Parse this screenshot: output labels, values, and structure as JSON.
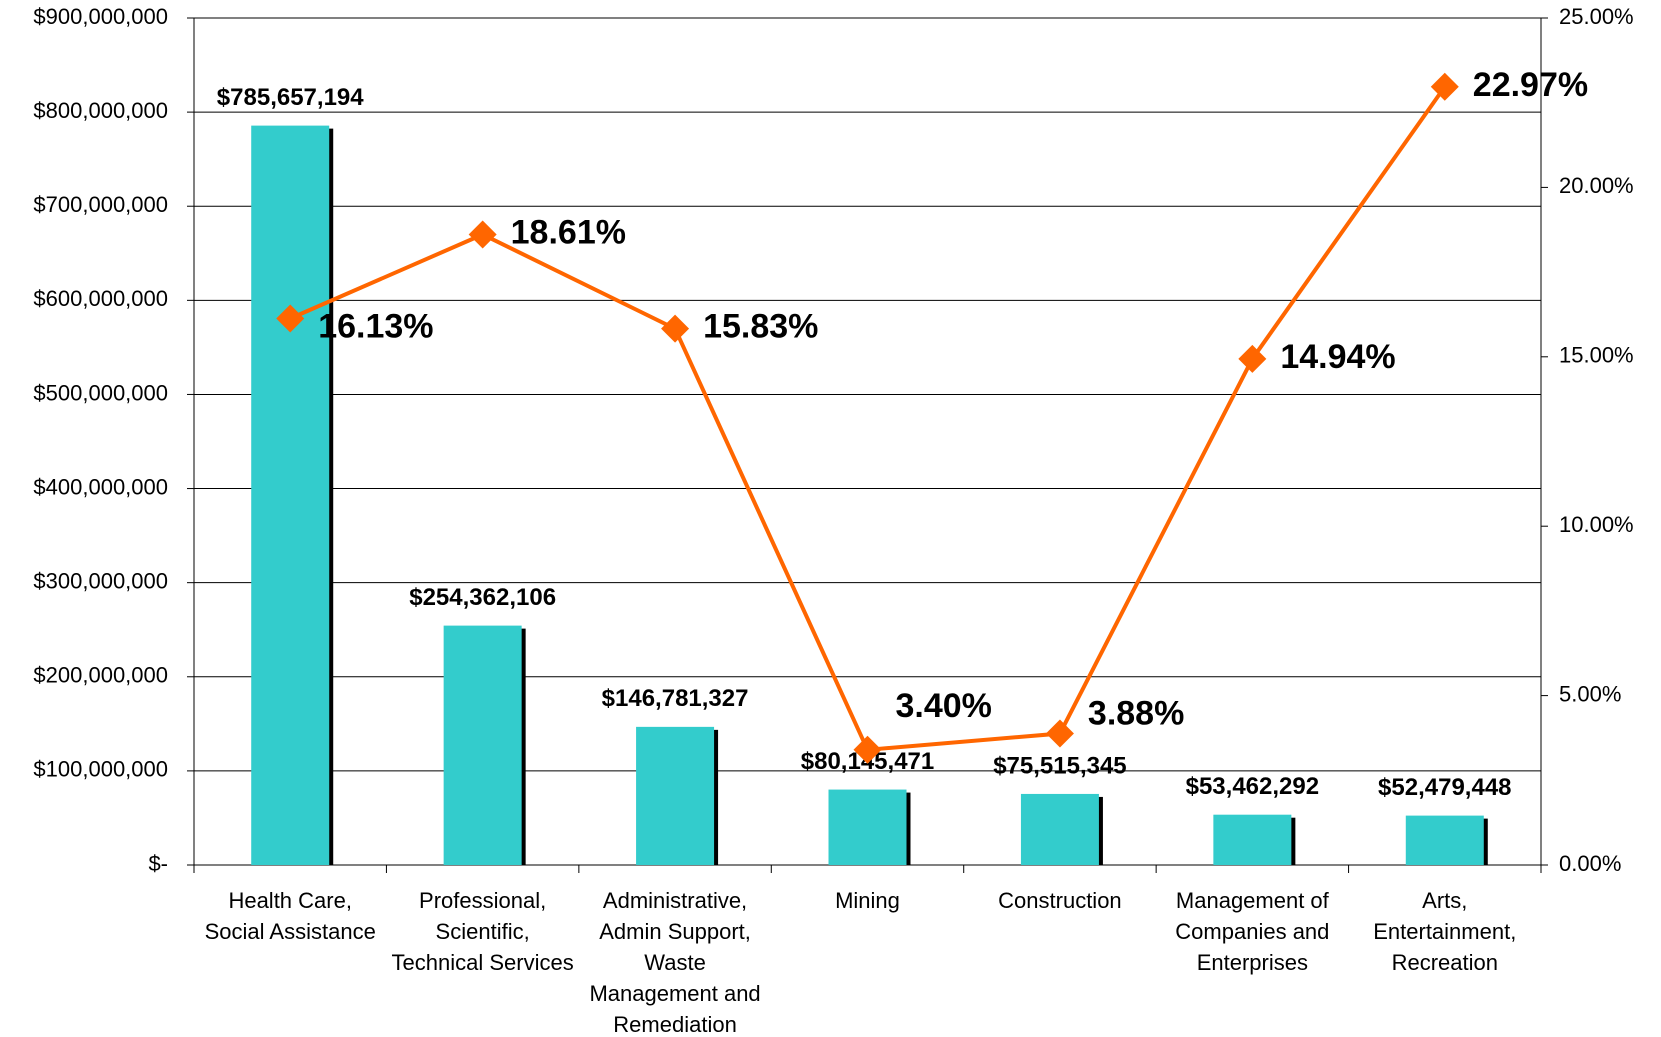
{
  "chart_data": {
    "type": "bar-line",
    "categories": [
      "Health Care, Social Assistance",
      "Professional, Scientific, Technical Services",
      "Administrative, Admin Support, Waste Management and Remediation",
      "Mining",
      "Construction",
      "Management of Companies and Enterprises",
      "Arts, Entertainment, Recreation"
    ],
    "series": [
      {
        "type": "bar",
        "color": "#33cccc",
        "values": [
          785657194,
          254362106,
          146781327,
          80145471,
          75515345,
          53462292,
          52479448
        ],
        "value_labels": [
          "$785,657,194",
          "$254,362,106",
          "$146,781,327",
          "$80,145,471",
          "$75,515,345",
          "$53,462,292",
          "$52,479,448"
        ]
      },
      {
        "type": "line",
        "axis": "y2",
        "color": "#ff6600",
        "values": [
          16.13,
          18.61,
          15.83,
          3.4,
          3.88,
          14.94,
          22.97
        ],
        "value_labels": [
          "16.13%",
          "18.61%",
          "15.83%",
          "3.40%",
          "3.88%",
          "14.94%",
          "22.97%"
        ]
      }
    ],
    "ylim": [
      0,
      900000000
    ],
    "yticks": [
      {
        "value": 0,
        "label": "$-"
      },
      {
        "value": 100000000,
        "label": "$100,000,000"
      },
      {
        "value": 200000000,
        "label": "$200,000,000"
      },
      {
        "value": 300000000,
        "label": "$300,000,000"
      },
      {
        "value": 400000000,
        "label": "$400,000,000"
      },
      {
        "value": 500000000,
        "label": "$500,000,000"
      },
      {
        "value": 600000000,
        "label": "$600,000,000"
      },
      {
        "value": 700000000,
        "label": "$700,000,000"
      },
      {
        "value": 800000000,
        "label": "$800,000,000"
      },
      {
        "value": 900000000,
        "label": "$900,000,000"
      }
    ],
    "y2lim": [
      0,
      25
    ],
    "y2ticks": [
      {
        "value": 0,
        "label": "0.00%"
      },
      {
        "value": 5,
        "label": "5.00%"
      },
      {
        "value": 10,
        "label": "10.00%"
      },
      {
        "value": 15,
        "label": "15.00%"
      },
      {
        "value": 20,
        "label": "20.00%"
      },
      {
        "value": 25,
        "label": "25.00%"
      }
    ],
    "grid": true
  }
}
